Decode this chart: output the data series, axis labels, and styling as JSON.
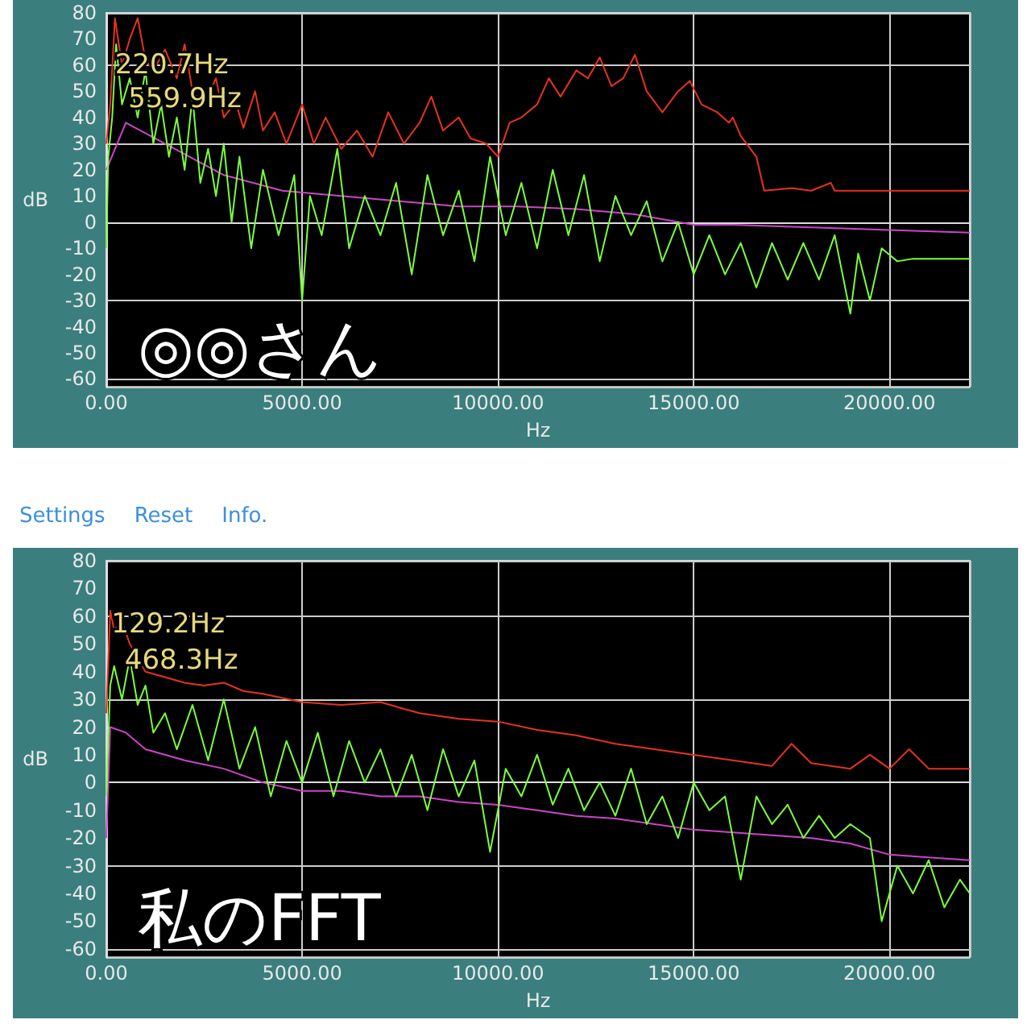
{
  "chart_data": [
    {
      "type": "line",
      "xlabel": "Hz",
      "ylabel": "dB",
      "xlim": [
        0,
        22050
      ],
      "ylim": [
        -63,
        80
      ],
      "xticks": [
        {
          "value": 0,
          "label": "0.00"
        },
        {
          "value": 5000,
          "label": "5000.00"
        },
        {
          "value": 10000,
          "label": "10000.00"
        },
        {
          "value": 15000,
          "label": "15000.00"
        },
        {
          "value": 20000,
          "label": "20000.00"
        }
      ],
      "yticks": [
        -60,
        -50,
        -40,
        -30,
        -20,
        -10,
        0,
        10,
        20,
        30,
        40,
        50,
        60,
        70,
        80
      ],
      "grid": true,
      "marker": "none",
      "line_style": "solid",
      "annotations": [
        {
          "text": "220.7Hz",
          "x": 220.7,
          "y": 60
        },
        {
          "text": "559.9Hz",
          "x": 559.9,
          "y": 47
        },
        "◎◎さん"
      ],
      "series": [
        {
          "color": "#e8321e",
          "x": [
            0,
            100,
            220,
            400,
            600,
            800,
            1000,
            1200,
            1500,
            1800,
            2000,
            2200,
            2500,
            2800,
            3000,
            3300,
            3500,
            3800,
            4000,
            4300,
            4600,
            5000,
            5300,
            5600,
            6000,
            6400,
            6800,
            7200,
            7600,
            8000,
            8300,
            8600,
            9000,
            9300,
            9700,
            10000,
            10300,
            10600,
            11000,
            11300,
            11600,
            12000,
            12300,
            12600,
            12900,
            13200,
            13500,
            13800,
            14200,
            14600,
            14900,
            15200,
            15600,
            15900,
            16000,
            16200,
            16600,
            16800,
            17500,
            18000,
            18500,
            18600,
            20000,
            22050
          ],
          "values": [
            30,
            45,
            78,
            60,
            70,
            78,
            62,
            58,
            66,
            55,
            68,
            50,
            45,
            55,
            40,
            46,
            36,
            50,
            35,
            42,
            30,
            45,
            30,
            40,
            28,
            35,
            25,
            42,
            30,
            38,
            48,
            35,
            40,
            32,
            30,
            25,
            38,
            40,
            45,
            55,
            48,
            58,
            55,
            63,
            52,
            55,
            64,
            50,
            42,
            50,
            54,
            45,
            42,
            38,
            40,
            33,
            25,
            12,
            13,
            12,
            15,
            12,
            12,
            12
          ]
        },
        {
          "color": "#cc44cc",
          "x": [
            0,
            500,
            1500,
            3000,
            4500,
            6000,
            7500,
            9000,
            10500,
            12000,
            13500,
            15000,
            16000,
            18000,
            20000,
            22050
          ],
          "values": [
            20,
            38,
            30,
            18,
            12,
            10,
            8,
            6,
            6,
            5,
            3,
            -1,
            -1,
            -2,
            -3,
            -4
          ]
        },
        {
          "color": "#7cff3c",
          "x": [
            0,
            50,
            150,
            250,
            400,
            600,
            800,
            1000,
            1200,
            1400,
            1600,
            1800,
            2000,
            2200,
            2400,
            2600,
            2800,
            3000,
            3200,
            3400,
            3700,
            4000,
            4400,
            4800,
            5000,
            5200,
            5500,
            5900,
            6200,
            6600,
            7000,
            7400,
            7800,
            8200,
            8600,
            9000,
            9400,
            9800,
            10200,
            10600,
            11000,
            11400,
            11800,
            12200,
            12600,
            13000,
            13400,
            13800,
            14200,
            14600,
            15000,
            15400,
            15800,
            16200,
            16600,
            17000,
            17400,
            17800,
            18200,
            18600,
            19000,
            19200,
            19500,
            19800,
            20200,
            20600,
            22050
          ],
          "values": [
            -10,
            25,
            40,
            68,
            45,
            55,
            40,
            58,
            30,
            45,
            25,
            40,
            20,
            48,
            15,
            28,
            10,
            30,
            0,
            25,
            -10,
            20,
            -5,
            18,
            -30,
            10,
            -5,
            28,
            -10,
            10,
            -5,
            15,
            -20,
            18,
            -5,
            12,
            -15,
            25,
            -5,
            15,
            -10,
            20,
            -5,
            18,
            -15,
            10,
            -5,
            8,
            -15,
            0,
            -20,
            -5,
            -20,
            -8,
            -25,
            -8,
            -22,
            -8,
            -22,
            -5,
            -35,
            -12,
            -30,
            -10,
            -15,
            -14,
            -14
          ]
        }
      ]
    },
    {
      "type": "other",
      "annotations": [
        "Settings",
        "Reset",
        "Info."
      ]
    },
    {
      "type": "line",
      "xlabel": "Hz",
      "ylabel": "dB",
      "xlim": [
        0,
        22050
      ],
      "ylim": [
        -63,
        80
      ],
      "xticks": [
        {
          "value": 0,
          "label": "0.00"
        },
        {
          "value": 5000,
          "label": "5000.00"
        },
        {
          "value": 10000,
          "label": "10000.00"
        },
        {
          "value": 15000,
          "label": "15000.00"
        },
        {
          "value": 20000,
          "label": "20000.00"
        }
      ],
      "yticks": [
        -60,
        -50,
        -40,
        -30,
        -20,
        -10,
        0,
        10,
        20,
        30,
        40,
        50,
        60,
        70,
        80
      ],
      "grid": true,
      "marker": "none",
      "line_style": "solid",
      "annotations": [
        {
          "text": "129.2Hz",
          "x": 129.2,
          "y": 57
        },
        {
          "text": "468.3Hz",
          "x": 468.3,
          "y": 44
        },
        "私のFFT"
      ],
      "series": [
        {
          "color": "#e8321e",
          "x": [
            0,
            100,
            200,
            400,
            600,
            800,
            1000,
            1500,
            2000,
            2500,
            3000,
            3500,
            4000,
            5000,
            6000,
            7000,
            7500,
            8000,
            9000,
            10000,
            11000,
            12000,
            13000,
            14000,
            15000,
            16000,
            17000,
            17500,
            18000,
            19000,
            19500,
            20000,
            20500,
            21000,
            22050
          ],
          "values": [
            25,
            62,
            55,
            58,
            50,
            45,
            40,
            38,
            36,
            35,
            36,
            33,
            32,
            29,
            28,
            29,
            27,
            25,
            23,
            22,
            19,
            17,
            14,
            12,
            10,
            8,
            6,
            14,
            7,
            5,
            10,
            5,
            12,
            5,
            5
          ]
        },
        {
          "color": "#cc44cc",
          "x": [
            0,
            100,
            500,
            1000,
            2000,
            3000,
            4000,
            5000,
            6000,
            7000,
            8000,
            9000,
            10000,
            11000,
            12000,
            13000,
            14000,
            15000,
            16000,
            17000,
            18000,
            19000,
            20000,
            21000,
            22050
          ],
          "values": [
            -20,
            20,
            18,
            12,
            8,
            5,
            0,
            -3,
            -3,
            -5,
            -5,
            -7,
            -8,
            -10,
            -12,
            -13,
            -15,
            -17,
            -18,
            -19,
            -20,
            -22,
            -26,
            -27,
            -28
          ]
        },
        {
          "color": "#7cff3c",
          "x": [
            0,
            100,
            200,
            400,
            600,
            800,
            1000,
            1200,
            1500,
            1800,
            2200,
            2600,
            3000,
            3400,
            3800,
            4200,
            4600,
            5000,
            5400,
            5800,
            6200,
            6600,
            7000,
            7400,
            7800,
            8200,
            8600,
            9000,
            9400,
            9800,
            10200,
            10600,
            11000,
            11400,
            11800,
            12200,
            12600,
            13000,
            13400,
            13800,
            14200,
            14600,
            15000,
            15400,
            15800,
            16200,
            16600,
            17000,
            17400,
            17800,
            18200,
            18600,
            19000,
            19500,
            19800,
            20200,
            20600,
            21000,
            21400,
            21800,
            22050
          ],
          "values": [
            -5,
            35,
            42,
            30,
            45,
            28,
            35,
            18,
            25,
            12,
            28,
            8,
            30,
            5,
            20,
            -5,
            15,
            0,
            18,
            -5,
            15,
            0,
            12,
            -5,
            10,
            -10,
            12,
            -5,
            8,
            -25,
            5,
            -5,
            10,
            -8,
            5,
            -10,
            0,
            -12,
            5,
            -15,
            -5,
            -20,
            0,
            -10,
            -5,
            -35,
            -5,
            -15,
            -8,
            -20,
            -12,
            -20,
            -15,
            -20,
            -50,
            -30,
            -40,
            -28,
            -45,
            -35,
            -40
          ]
        }
      ]
    }
  ]
}
